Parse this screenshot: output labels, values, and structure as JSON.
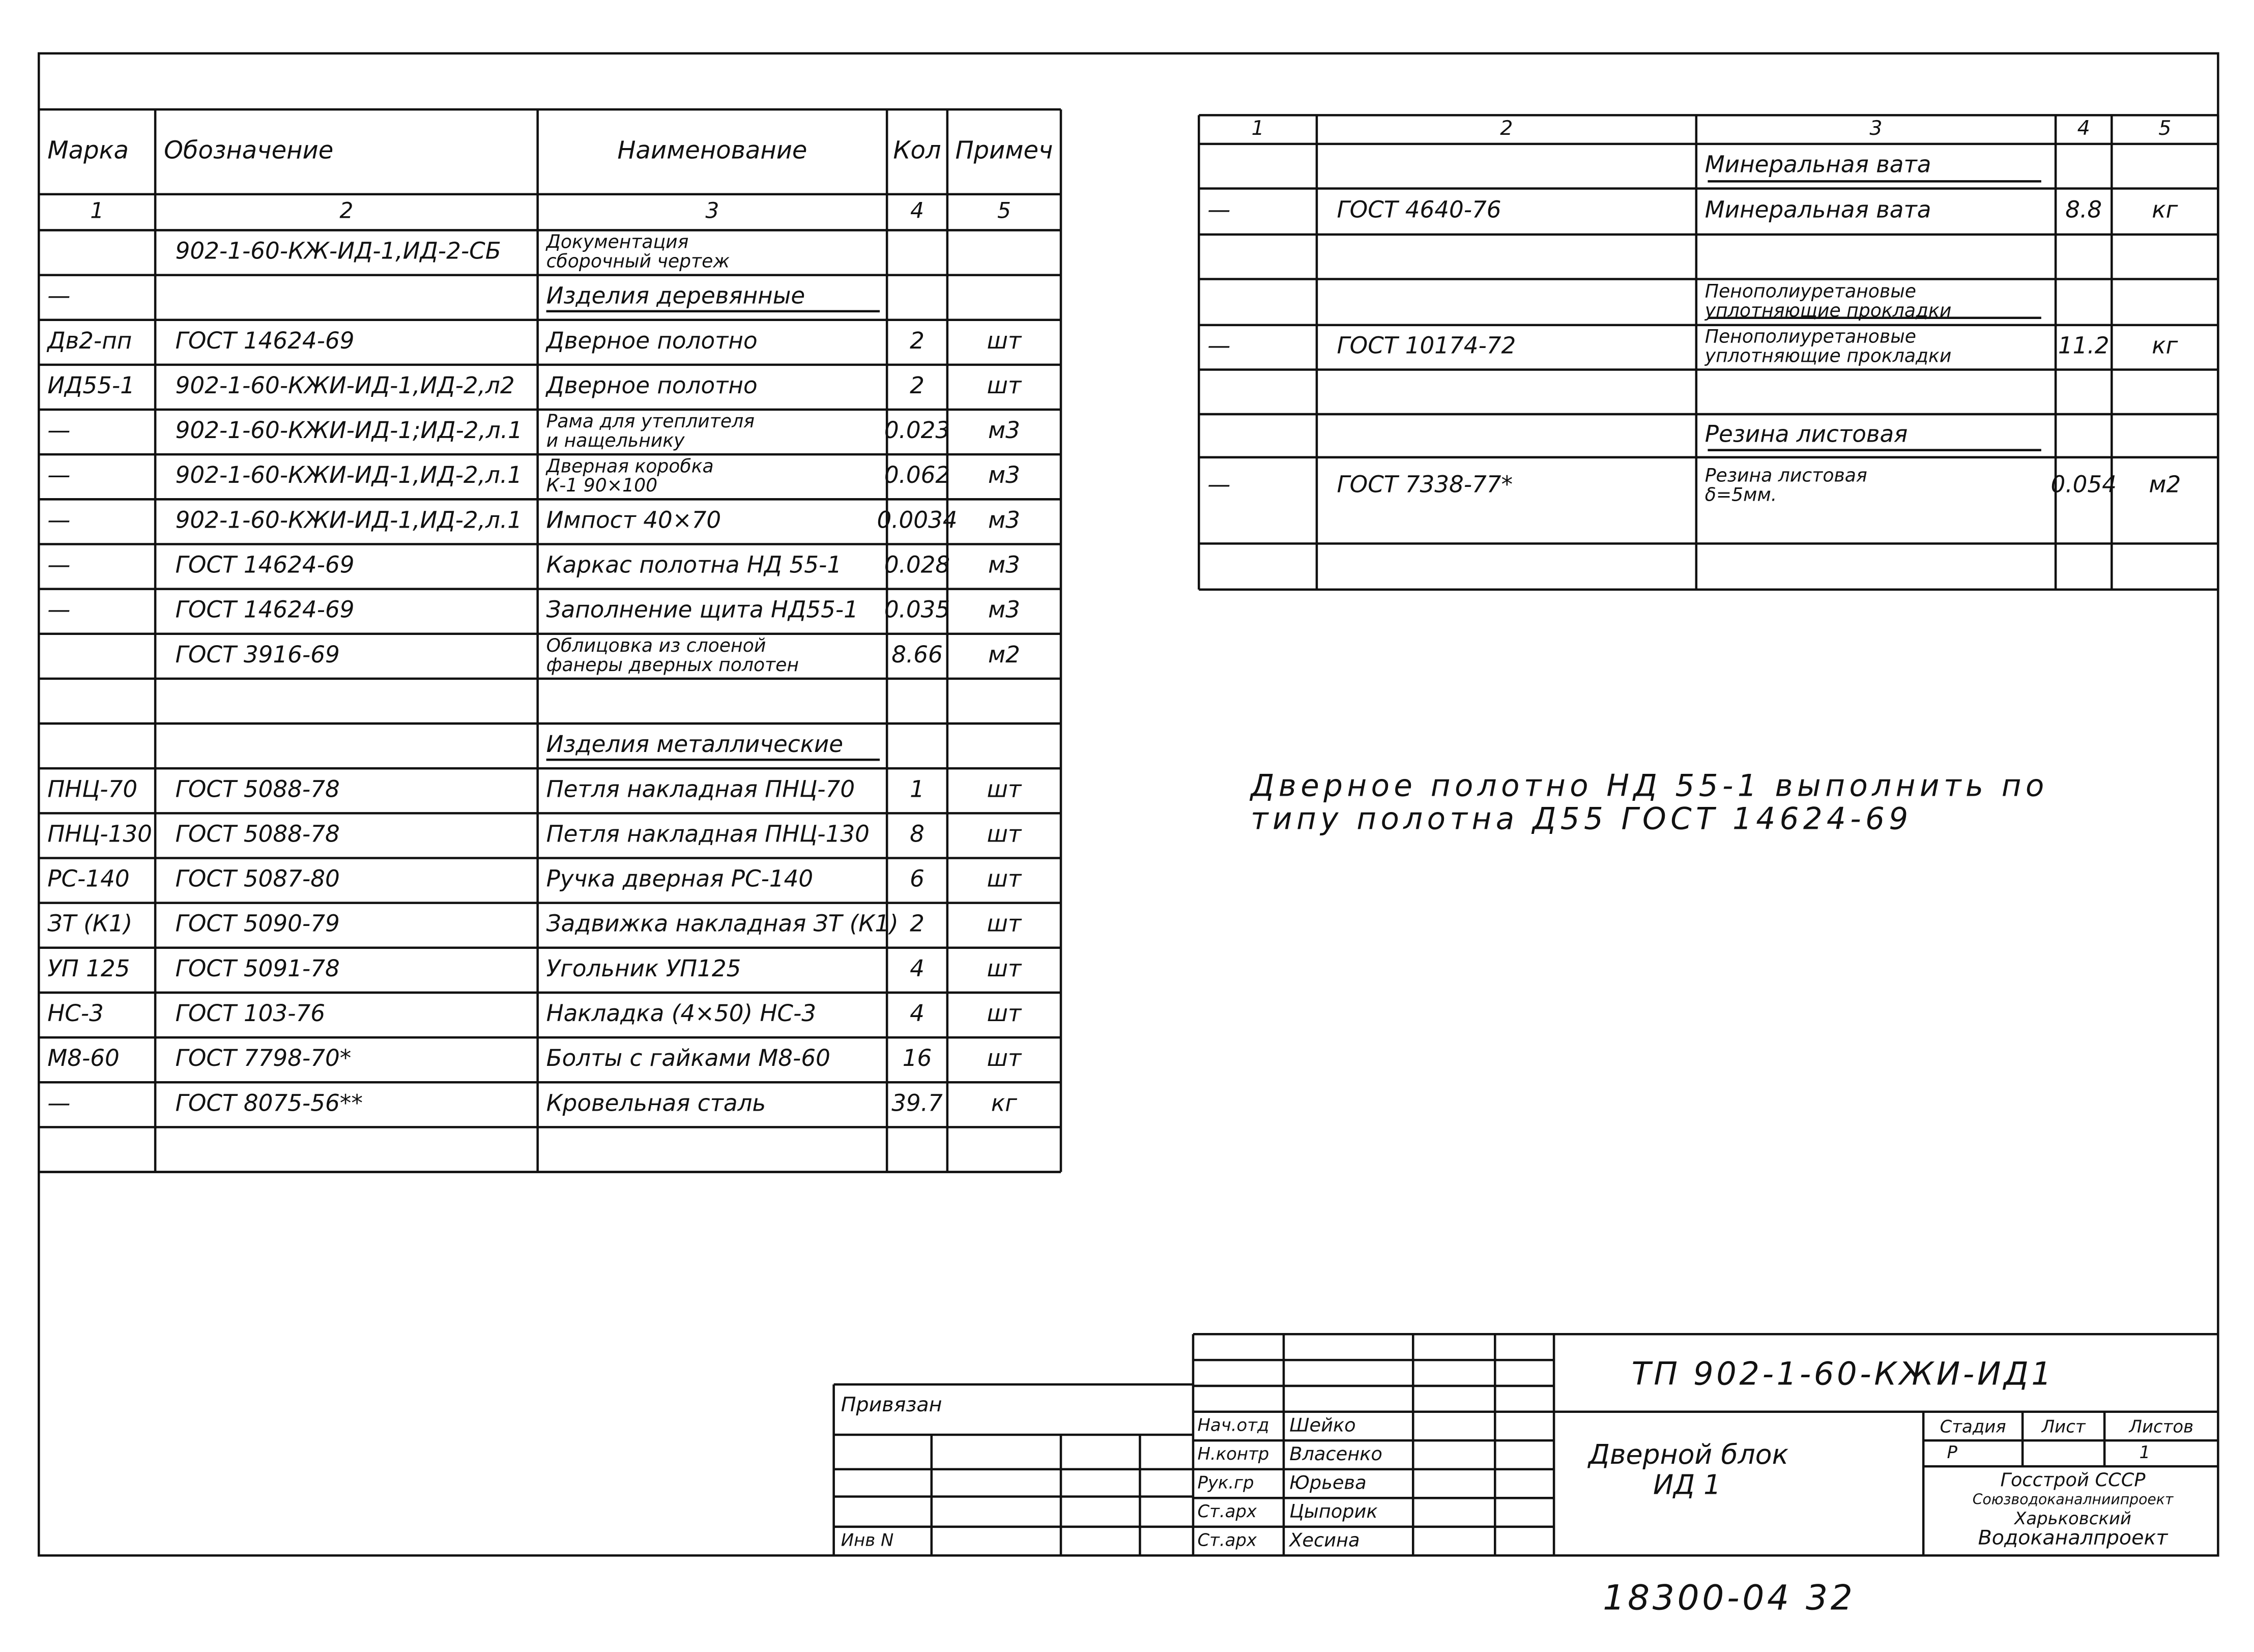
{
  "left_table": {
    "header": [
      "Марка",
      "Обозначение",
      "Наименование",
      "Кол",
      "Примеч"
    ],
    "numbers": [
      "1",
      "2",
      "3",
      "4",
      "5"
    ],
    "rows": [
      [
        null,
        "902-1-60-КЖ-ИД-1,ИД-2-СБ",
        [
          "Документация",
          "сборочный чертеж"
        ],
        null,
        null
      ],
      [
        "—",
        null,
        "Изделия деревянные",
        null,
        null
      ],
      [
        "Дв2-пп",
        "ГОСТ 14624-69",
        "Дверное полотно",
        "2",
        "шт"
      ],
      [
        "ИД55-1",
        "902-1-60-КЖИ-ИД-1,ИД-2,л2",
        "Дверное полотно",
        "2",
        "шт"
      ],
      [
        "—",
        "902-1-60-КЖИ-ИД-1;ИД-2,л.1",
        [
          "Рама для утеплителя",
          "и нащельнику"
        ],
        "0.023",
        "м3"
      ],
      [
        "—",
        "902-1-60-КЖИ-ИД-1,ИД-2,л.1",
        [
          "Дверная коробка",
          "К-1   90×100"
        ],
        "0.062",
        "м3"
      ],
      [
        "—",
        "902-1-60-КЖИ-ИД-1,ИД-2,л.1",
        "Импост 40×70",
        "0.0034",
        "м3"
      ],
      [
        "—",
        "ГОСТ 14624-69",
        "Каркас полотна НД 55-1",
        "0.028",
        "м3"
      ],
      [
        "—",
        "ГОСТ 14624-69",
        "Заполнение щита НД55-1",
        "0.035",
        "м3"
      ],
      [
        null,
        "ГОСТ 3916-69",
        [
          "Облицовка из слоеной",
          "фанеры дверных полотен"
        ],
        "8.66",
        "м2"
      ],
      [
        null,
        null,
        null,
        null,
        null
      ],
      [
        null,
        null,
        "Изделия металлические",
        null,
        null
      ],
      [
        "ПНЦ-70",
        "ГОСТ 5088-78",
        "Петля накладная ПНЦ-70",
        "1",
        "шт"
      ],
      [
        "ПНЦ-130",
        "ГОСТ 5088-78",
        "Петля накладная ПНЦ-130",
        "8",
        "шт"
      ],
      [
        "РС-140",
        "ГОСТ 5087-80",
        "Ручка дверная РС-140",
        "6",
        "шт"
      ],
      [
        "ЗТ (К1)",
        "ГОСТ 5090-79",
        "Задвижка накладная ЗТ (К1)",
        "2",
        "шт"
      ],
      [
        "УП 125",
        "ГОСТ 5091-78",
        "Угольник УП125",
        "4",
        "шт"
      ],
      [
        "НС-3",
        "ГОСТ 103-76",
        "Накладка (4×50) НС-3",
        "4",
        "шт"
      ],
      [
        "М8-60",
        "ГОСТ 7798-70*",
        "Болты с гайками М8-60",
        "16",
        "шт"
      ],
      [
        "—",
        "ГОСТ 8075-56**",
        "Кровельная сталь",
        "39.7",
        "кг"
      ],
      [
        null,
        null,
        null,
        null,
        null
      ]
    ]
  },
  "right_table": {
    "numbers": [
      "1",
      "2",
      "3",
      "4",
      "5"
    ],
    "rows": [
      [
        null,
        null,
        "Минеральная вата",
        null,
        null
      ],
      [
        "—",
        "ГОСТ 4640-76",
        "Минеральная вата",
        "8.8",
        "кг"
      ],
      [
        null,
        null,
        null,
        null,
        null
      ],
      [
        null,
        null,
        [
          "Пенополиуретановые",
          "уплотняющие прокладки"
        ],
        null,
        null
      ],
      [
        "—",
        "ГОСТ 10174-72",
        [
          "Пенополиуретановые",
          "уплотняющие прокладки"
        ],
        "11.2",
        "кг"
      ],
      [
        null,
        null,
        null,
        null,
        null
      ],
      [
        null,
        null,
        "Резина листовая",
        null,
        null
      ],
      [
        "—",
        "ГОСТ 7338-77*",
        [
          "Резина листовая",
          "δ=5мм."
        ],
        "0.054",
        "м2"
      ],
      [
        null,
        null,
        null,
        null,
        null
      ]
    ]
  },
  "note": [
    "Дверное полотно НД 55-1 выполнить по",
    "типу полотна Д55 ГОСТ 14624-69"
  ],
  "title_block": {
    "attached": "Привязан",
    "inv": "Инв N",
    "signatures": [
      [
        "Нач.отд",
        "Шейко"
      ],
      [
        "Н.контр",
        "Власенко"
      ],
      [
        "Рук.гр",
        "Юрьева"
      ],
      [
        "Ст.арх",
        "Цыпорик"
      ],
      [
        "Ст.арх",
        "Хесина"
      ]
    ],
    "code": "ТП 902-1-60-КЖИ-ИД1",
    "name": [
      "Дверной блок",
      "ИД 1"
    ],
    "stage_headers": [
      "Стадия",
      "Лист",
      "Листов"
    ],
    "stage": "Р",
    "sheets": "1",
    "organization": [
      "Госстрой СССР",
      "Союзводоканалниипроект",
      "Харьковский",
      "Водоканалпроект"
    ]
  },
  "sheet_number": "18300-04 32"
}
